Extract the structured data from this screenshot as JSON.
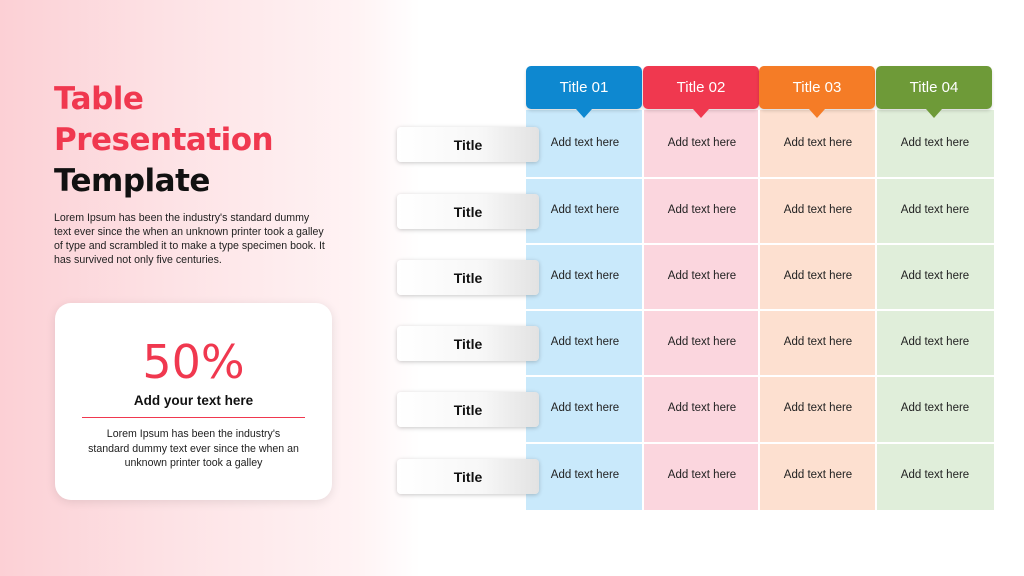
{
  "heading": {
    "line1": "Table",
    "line2": "Presentation",
    "line3": "Template"
  },
  "intro_text": "Lorem Ipsum has been the industry's standard dummy text ever since the when an unknown printer took a galley of type and scrambled it to make a type specimen book. It has survived not only five centuries.",
  "stat_card": {
    "value": "50%",
    "caption": "Add your text here",
    "description": "Lorem Ipsum has been the industry's standard dummy text ever since the when an unknown printer took a galley"
  },
  "table": {
    "columns": [
      {
        "label": "Title 01",
        "color": "#0e88d0",
        "fill": "#c9e9fb"
      },
      {
        "label": "Title 02",
        "color": "#f0384f",
        "fill": "#fbd6de"
      },
      {
        "label": "Title 03",
        "color": "#f57c26",
        "fill": "#fde0d0"
      },
      {
        "label": "Title 04",
        "color": "#6e9a38",
        "fill": "#e0eeda"
      }
    ],
    "rows": [
      {
        "label": "Title",
        "cells": [
          "Add text here",
          "Add text here",
          "Add text here",
          "Add text here"
        ]
      },
      {
        "label": "Title",
        "cells": [
          "Add text here",
          "Add text here",
          "Add text here",
          "Add text here"
        ]
      },
      {
        "label": "Title",
        "cells": [
          "Add text here",
          "Add text here",
          "Add text here",
          "Add text here"
        ]
      },
      {
        "label": "Title",
        "cells": [
          "Add text here",
          "Add text here",
          "Add text here",
          "Add text here"
        ]
      },
      {
        "label": "Title",
        "cells": [
          "Add text here",
          "Add text here",
          "Add text here",
          "Add text here"
        ]
      },
      {
        "label": "Title",
        "cells": [
          "Add text here",
          "Add text here",
          "Add text here",
          "Add text here"
        ]
      }
    ]
  }
}
